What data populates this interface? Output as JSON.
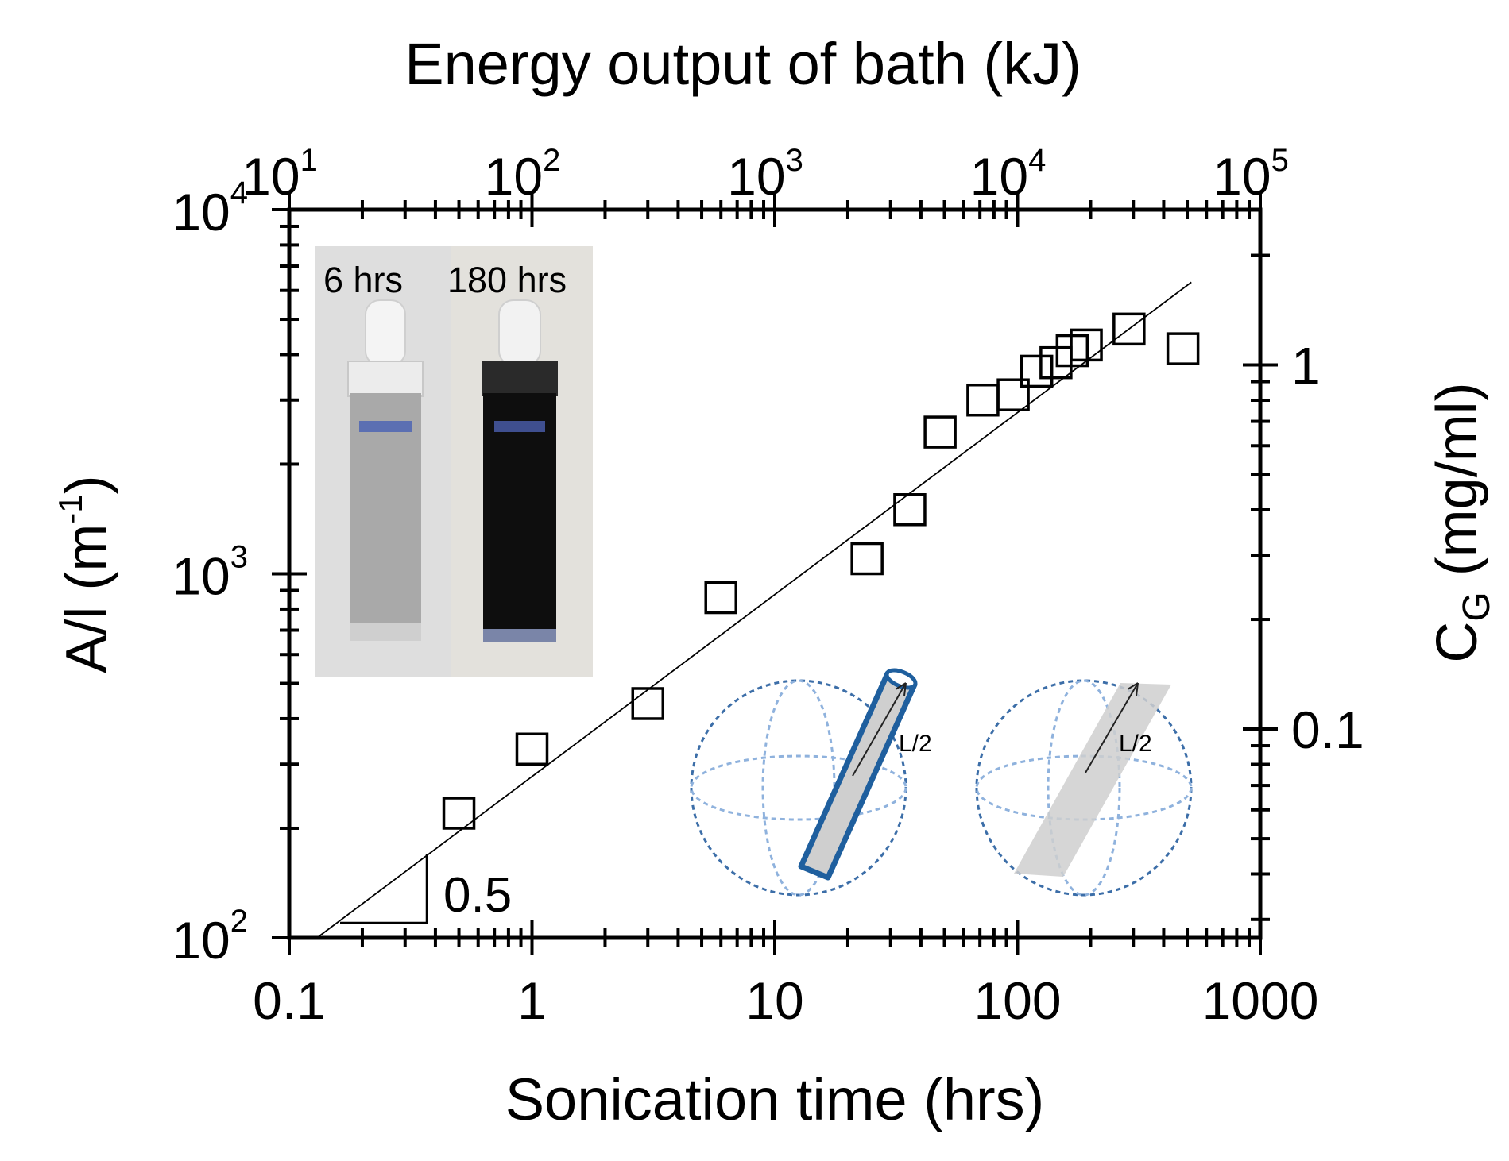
{
  "chart_data": {
    "type": "scatter",
    "title": "",
    "xlabel": "Sonication time (hrs)",
    "ylabel_main": "A/l (m",
    "ylabel_sup": "-1",
    "ylabel_close": ")",
    "x2label": "Energy output of bath (kJ)",
    "y2label_main": "C",
    "y2label_sub": "G",
    "y2label_tail": " (mg/ml)",
    "xscale": "log",
    "yscale": "log",
    "xlim": [
      0.1,
      1000
    ],
    "ylim": [
      100,
      10000
    ],
    "x2lim": [
      10,
      100000
    ],
    "y2lim": [
      0.0267,
      2.67
    ],
    "x_ticks": [
      "0.1",
      "1",
      "10",
      "100",
      "1000"
    ],
    "y_ticks": [
      {
        "base": "10",
        "exp": "2"
      },
      {
        "base": "10",
        "exp": "3"
      },
      {
        "base": "10",
        "exp": "4"
      }
    ],
    "x2_ticks": [
      {
        "base": "10",
        "exp": "1"
      },
      {
        "base": "10",
        "exp": "2"
      },
      {
        "base": "10",
        "exp": "3"
      },
      {
        "base": "10",
        "exp": "4"
      },
      {
        "base": "10",
        "exp": "5"
      }
    ],
    "y2_ticks": [
      {
        "label": "0.1",
        "value": 0.1
      },
      {
        "label": "1",
        "value": 1
      }
    ],
    "grid": false,
    "marker": "open-square",
    "x": [
      0.5,
      1,
      3,
      6,
      24,
      36,
      48,
      72,
      96,
      120,
      144,
      168,
      192,
      288,
      480
    ],
    "y": [
      220,
      330,
      440,
      860,
      1100,
      1500,
      2450,
      3000,
      3100,
      3600,
      3800,
      4100,
      4250,
      4700,
      4150
    ],
    "fit_line": {
      "exponent": 0.5,
      "x": [
        0.13,
        520
      ],
      "y": [
        100,
        6320
      ]
    },
    "slope_label": "0.5",
    "photo_inset": {
      "labels": [
        "6 hrs",
        "180 hrs"
      ]
    },
    "diagram_inset": {
      "labels": [
        "L/2",
        "L/2"
      ]
    }
  }
}
